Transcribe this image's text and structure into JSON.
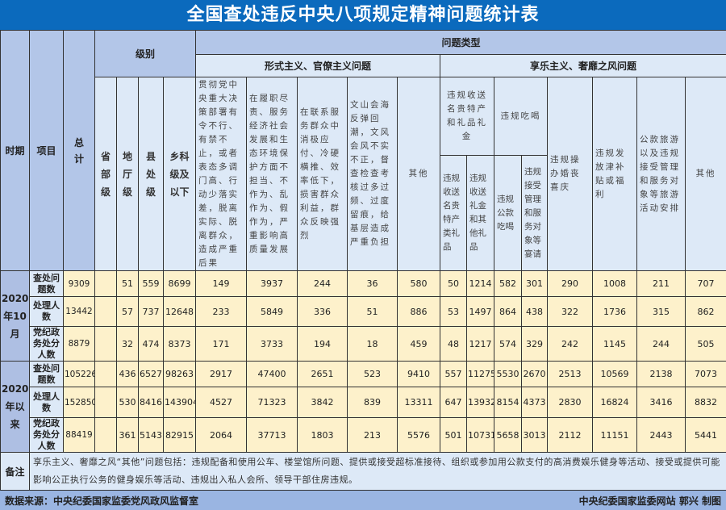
{
  "title": "全国查处违反中央八项规定精神问题统计表",
  "headers": {
    "period": "时期",
    "item": "项目",
    "total": "总计",
    "level": "级别",
    "levels": [
      "省部级",
      "地厅级",
      "县处级",
      "乡科级及以下"
    ],
    "problem_type": "问题类型",
    "formalism": "形式主义、官僚主义问题",
    "formalism_cols": [
      "贯彻党中央重大决策部署有令不行、有禁不止，或者表态多调门高、行动少落实差，脱离实际、脱离群众，造成严重后果",
      "在履职尽责、服务经济社会发展和生态环境保护方面不担当、不作为、乱作为、假作为，严重影响高质量发展",
      "在联系服务群众中消极应付、冷硬横推、效率低下，损害群众利益，群众反映强烈",
      "文山会海反弹回潮，文风会风不实不正，督查检查考核过多过频、过度留痕，给基层造成严重负担",
      "其他"
    ],
    "hedonism": "享乐主义、奢靡之风问题",
    "gifts": "违规收送名贵特产和礼品礼金",
    "gifts_cols": [
      "违规收送名贵特产类礼品",
      "违规收送礼金和其他礼品"
    ],
    "dining": "违规吃喝",
    "dining_cols": [
      "违规公款吃喝",
      "违规接受管理和服务对象等宴请"
    ],
    "hedonism_cols": [
      "违规操办婚丧喜庆",
      "违规发放津补贴或福利",
      "公款旅游以及违规接受管理和服务对象等旅游活动安排",
      "其他"
    ]
  },
  "periods": [
    {
      "label": "2020年10月",
      "rows": [
        {
          "item": "查处问题数",
          "values": [
            "9309",
            "",
            "51",
            "559",
            "8699",
            "149",
            "3937",
            "244",
            "36",
            "580",
            "50",
            "1214",
            "582",
            "301",
            "290",
            "1008",
            "211",
            "707"
          ]
        },
        {
          "item": "处理人数",
          "values": [
            "13442",
            "",
            "57",
            "737",
            "12648",
            "233",
            "5849",
            "336",
            "51",
            "886",
            "53",
            "1497",
            "864",
            "438",
            "322",
            "1736",
            "315",
            "862"
          ]
        },
        {
          "item": "党纪政务处分人数",
          "values": [
            "8879",
            "",
            "32",
            "474",
            "8373",
            "171",
            "3733",
            "194",
            "18",
            "459",
            "48",
            "1217",
            "574",
            "329",
            "242",
            "1145",
            "244",
            "505"
          ]
        }
      ]
    },
    {
      "label": "2020年以来",
      "rows": [
        {
          "item": "查处问题数",
          "values": [
            "105226",
            "",
            "436",
            "6527",
            "98263",
            "2917",
            "47400",
            "2651",
            "523",
            "9410",
            "557",
            "11275",
            "5530",
            "2670",
            "2513",
            "10569",
            "2138",
            "7073"
          ]
        },
        {
          "item": "处理人数",
          "values": [
            "152850",
            "",
            "530",
            "8416",
            "143904",
            "4527",
            "71323",
            "3842",
            "839",
            "13311",
            "647",
            "13932",
            "8154",
            "4373",
            "2830",
            "16824",
            "3416",
            "8832"
          ]
        },
        {
          "item": "党纪政务处分人数",
          "values": [
            "88419",
            "",
            "361",
            "5143",
            "82915",
            "2064",
            "37713",
            "1803",
            "213",
            "5576",
            "501",
            "10731",
            "5658",
            "3013",
            "2112",
            "11151",
            "2443",
            "5441"
          ]
        }
      ]
    }
  ],
  "note": {
    "label": "备注",
    "text": "享乐主义、奢靡之风“其他”问题包括：违规配备和使用公车、楼堂馆所问题、提供或接受超标准接待、组织或参加用公款支付的高消费娱乐健身等活动、接受或提供可能影响公正执行公务的健身娱乐等活动、违规出入私人会所、领导干部住房违规。"
  },
  "footer": {
    "source": "数据来源：中央纪委国家监委党风政风监督室",
    "credit": "中央纪委国家监委网站 郭兴 制图"
  },
  "colors": {
    "title_bg": "#0b6abd",
    "header_bg": "#b3c6e8",
    "subheader_bg": "#dde9f7",
    "data_bg": "#fdf1cb",
    "footer_bg": "#9ab5e2"
  }
}
